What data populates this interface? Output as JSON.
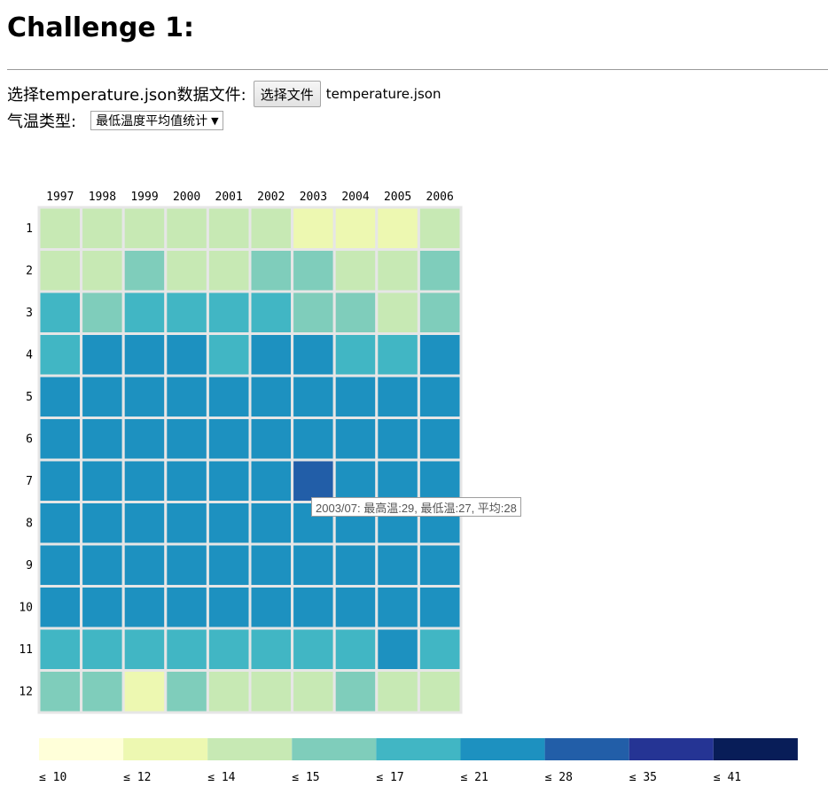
{
  "page": {
    "title": "Challenge 1:",
    "file_label": "选择temperature.json数据文件:",
    "file_button": "选择文件",
    "file_name": "temperature.json",
    "type_label": "气温类型:",
    "type_select": "最低温度平均值统计"
  },
  "tooltip": "2003/07: 最高温:29, 最低温:27, 平均:28",
  "chart_data": {
    "type": "heatmap",
    "x": [
      "1997",
      "1998",
      "1999",
      "2000",
      "2001",
      "2002",
      "2003",
      "2004",
      "2005",
      "2006"
    ],
    "y": [
      "1",
      "2",
      "3",
      "4",
      "5",
      "6",
      "7",
      "8",
      "9",
      "10",
      "11",
      "12"
    ],
    "value_bins_index": [
      [
        2,
        2,
        2,
        2,
        2,
        2,
        1,
        1,
        1,
        2
      ],
      [
        2,
        2,
        3,
        2,
        2,
        3,
        3,
        2,
        2,
        3
      ],
      [
        4,
        3,
        4,
        4,
        4,
        4,
        3,
        3,
        2,
        3
      ],
      [
        4,
        5,
        5,
        5,
        4,
        5,
        5,
        4,
        4,
        5
      ],
      [
        5,
        5,
        5,
        5,
        5,
        5,
        5,
        5,
        5,
        5
      ],
      [
        5,
        5,
        5,
        5,
        5,
        5,
        5,
        5,
        5,
        5
      ],
      [
        5,
        5,
        5,
        5,
        5,
        5,
        6,
        5,
        5,
        5
      ],
      [
        5,
        5,
        5,
        5,
        5,
        5,
        5,
        5,
        5,
        5
      ],
      [
        5,
        5,
        5,
        5,
        5,
        5,
        5,
        5,
        5,
        5
      ],
      [
        5,
        5,
        5,
        5,
        5,
        5,
        5,
        5,
        5,
        5
      ],
      [
        4,
        4,
        4,
        4,
        4,
        4,
        4,
        4,
        5,
        4
      ],
      [
        3,
        3,
        1,
        3,
        2,
        2,
        2,
        3,
        2,
        2
      ]
    ],
    "highlight": {
      "x": "2003",
      "y": "7"
    },
    "legend": {
      "labels": [
        "≤ 10",
        "≤ 12",
        "≤ 14",
        "≤ 15",
        "≤ 17",
        "≤ 21",
        "≤ 28",
        "≤ 35",
        "≤ 41"
      ],
      "colors": [
        "#ffffd9",
        "#edf8b1",
        "#c7e9b4",
        "#7fcdbb",
        "#41b6c4",
        "#1d91c0",
        "#225ea8",
        "#253494",
        "#081d58"
      ]
    },
    "cell_border_color": "#e6e6e6"
  }
}
